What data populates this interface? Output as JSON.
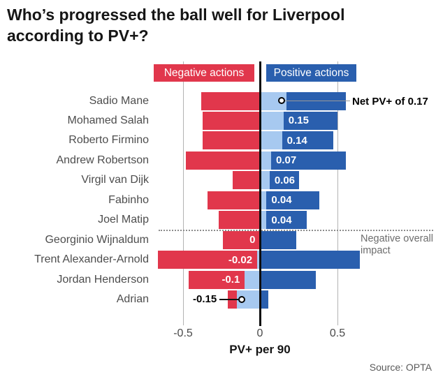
{
  "title": {
    "line1": "Who’s progressed the ball well for Liverpool",
    "line2": "according to PV+?"
  },
  "legend": {
    "negative": "Negative actions",
    "positive": "Positive actions"
  },
  "axis": {
    "ticks": [
      "-0.5",
      "0",
      "0.5"
    ],
    "label": "PV+ per 90"
  },
  "annotations": {
    "net_callout": "Net PV+ of 0.17",
    "negative_impact": "Negative overall impact"
  },
  "source": "Source: OPTA",
  "colors": {
    "negative_bar": "#e1374c",
    "net_bar": "#a7c9f0",
    "positive_bar": "#2a5fae",
    "gridline": "#b3b3b3",
    "zero_line": "#0d0d0d"
  },
  "chart_data": {
    "type": "bar",
    "orientation": "horizontal-diverging",
    "title": "Who’s progressed the ball well for Liverpool according to PV+?",
    "xlabel": "PV+ per 90",
    "xlim": [
      -0.75,
      1.1
    ],
    "x_ticks": [
      -0.5,
      0,
      0.5
    ],
    "legend": [
      "Negative actions",
      "Positive actions"
    ],
    "legend_position": "top",
    "grid": "vertical",
    "separator_after_index": 6,
    "separator_note": "Negative overall impact",
    "players": [
      {
        "name": "Sadio Mane",
        "negative_extent": -0.38,
        "net": 0.17,
        "positive_extent": 0.55,
        "bar_label": null,
        "callout": "Net PV+ of 0.17"
      },
      {
        "name": "Mohamed Salah",
        "negative_extent": -0.37,
        "net": 0.15,
        "positive_extent": 0.5,
        "bar_label": "0.15"
      },
      {
        "name": "Roberto Firmino",
        "negative_extent": -0.37,
        "net": 0.14,
        "positive_extent": 0.47,
        "bar_label": "0.14"
      },
      {
        "name": "Andrew Robertson",
        "negative_extent": -0.48,
        "net": 0.07,
        "positive_extent": 0.55,
        "bar_label": "0.07"
      },
      {
        "name": "Virgil van Dijk",
        "negative_extent": -0.18,
        "net": 0.06,
        "positive_extent": 0.25,
        "bar_label": "0.06"
      },
      {
        "name": "Fabinho",
        "negative_extent": -0.34,
        "net": 0.04,
        "positive_extent": 0.38,
        "bar_label": "0.04"
      },
      {
        "name": "Joel Matip",
        "negative_extent": -0.27,
        "net": 0.04,
        "positive_extent": 0.3,
        "bar_label": "0.04"
      },
      {
        "name": "Georginio Wijnaldum",
        "negative_extent": -0.24,
        "net": 0,
        "positive_extent": 0.23,
        "bar_label": "0"
      },
      {
        "name": "Trent Alexander-Arnold",
        "negative_extent": -0.66,
        "net": -0.02,
        "positive_extent": 0.64,
        "bar_label": "-0.02"
      },
      {
        "name": "Jordan Henderson",
        "negative_extent": -0.46,
        "net": -0.1,
        "positive_extent": 0.36,
        "bar_label": "-0.1"
      },
      {
        "name": "Adrian",
        "negative_extent": -0.21,
        "net": -0.15,
        "positive_extent": 0.05,
        "bar_label": "-0.15",
        "external_label": true
      }
    ]
  }
}
